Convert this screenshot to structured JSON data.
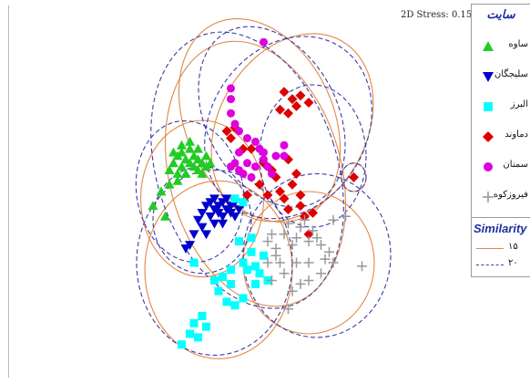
{
  "stress_label": "2D Stress: 0.15",
  "legend": {
    "title": "سایت",
    "items": [
      {
        "label": "ساوه",
        "marker": "triangle-up",
        "color": "#22cc22"
      },
      {
        "label": "سلیجگان",
        "marker": "triangle-down",
        "color": "#0000cc"
      },
      {
        "label": "البرز",
        "marker": "square",
        "color": "#00ffff"
      },
      {
        "label": "دماوند",
        "marker": "diamond",
        "color": "#dd0000"
      },
      {
        "label": "سمنان",
        "marker": "circle",
        "color": "#dd00dd"
      },
      {
        "label": "فیروزکوه",
        "marker": "plus",
        "color": "#999999"
      }
    ]
  },
  "similarity": {
    "title": "Similarity",
    "levels": [
      {
        "label": "۱۵",
        "style": "solid",
        "color": "#e08848"
      },
      {
        "label": "۲۰",
        "style": "dashed",
        "color": "#3a3aa8"
      }
    ]
  },
  "chart_data": {
    "type": "scatter",
    "axes_visible": false,
    "xlim": [
      0,
      100
    ],
    "ylim": [
      0,
      100
    ],
    "series": [
      {
        "name": "ساوه",
        "marker": "triangle-up",
        "color": "#22cc22",
        "points": [
          [
            28,
            56
          ],
          [
            29,
            58
          ],
          [
            30,
            55
          ],
          [
            30,
            60
          ],
          [
            31,
            57
          ],
          [
            31,
            61
          ],
          [
            32,
            59
          ],
          [
            32,
            55
          ],
          [
            33,
            58
          ],
          [
            33,
            62
          ],
          [
            34,
            57
          ],
          [
            34,
            60
          ],
          [
            35,
            56
          ],
          [
            35,
            59
          ],
          [
            35,
            62
          ],
          [
            36,
            58
          ],
          [
            36,
            55
          ],
          [
            37,
            60
          ],
          [
            37,
            57
          ],
          [
            33,
            64
          ],
          [
            31,
            63
          ],
          [
            29,
            61
          ],
          [
            30,
            53
          ],
          [
            38,
            58
          ],
          [
            26,
            50
          ],
          [
            24,
            46
          ],
          [
            27,
            43
          ],
          [
            28,
            52
          ]
        ]
      },
      {
        "name": "سلیجگان",
        "marker": "triangle-down",
        "color": "#0000cc",
        "points": [
          [
            36,
            44
          ],
          [
            37,
            46
          ],
          [
            38,
            43
          ],
          [
            38,
            47
          ],
          [
            39,
            45
          ],
          [
            39,
            48
          ],
          [
            40,
            44
          ],
          [
            40,
            46
          ],
          [
            41,
            43
          ],
          [
            41,
            47
          ],
          [
            42,
            45
          ],
          [
            42,
            48
          ],
          [
            43,
            44
          ],
          [
            43,
            46
          ],
          [
            44,
            47
          ],
          [
            44,
            43
          ],
          [
            45,
            45
          ],
          [
            36,
            40
          ],
          [
            35,
            42
          ],
          [
            34,
            38
          ],
          [
            33,
            35
          ],
          [
            37,
            38
          ],
          [
            39,
            41
          ],
          [
            41,
            41
          ],
          [
            32,
            34
          ]
        ]
      },
      {
        "name": "البرز",
        "marker": "square",
        "color": "#00ffff",
        "points": [
          [
            45,
            36
          ],
          [
            47,
            28
          ],
          [
            48,
            33
          ],
          [
            49,
            29
          ],
          [
            50,
            27
          ],
          [
            51,
            32
          ],
          [
            52,
            25
          ],
          [
            46,
            20
          ],
          [
            44,
            18
          ],
          [
            42,
            19
          ],
          [
            40,
            22
          ],
          [
            39,
            25
          ],
          [
            41,
            26
          ],
          [
            43,
            24
          ],
          [
            36,
            15
          ],
          [
            34,
            13
          ],
          [
            37,
            12
          ],
          [
            33,
            10
          ],
          [
            35,
            9
          ],
          [
            31,
            7
          ],
          [
            44,
            48
          ],
          [
            46,
            47
          ],
          [
            43,
            28
          ],
          [
            48,
            37
          ],
          [
            49,
            24
          ],
          [
            34,
            30
          ],
          [
            46,
            30
          ]
        ]
      },
      {
        "name": "دماوند",
        "marker": "diamond",
        "color": "#dd0000",
        "points": [
          [
            56,
            78
          ],
          [
            58,
            76
          ],
          [
            59,
            74
          ],
          [
            60,
            77
          ],
          [
            62,
            75
          ],
          [
            57,
            72
          ],
          [
            55,
            73
          ],
          [
            42,
            67
          ],
          [
            43,
            65
          ],
          [
            46,
            62
          ],
          [
            48,
            62
          ],
          [
            44,
            68
          ],
          [
            51,
            58
          ],
          [
            53,
            56
          ],
          [
            54,
            54
          ],
          [
            55,
            50
          ],
          [
            56,
            48
          ],
          [
            57,
            45
          ],
          [
            58,
            52
          ],
          [
            59,
            55
          ],
          [
            60,
            49
          ],
          [
            60,
            46
          ],
          [
            61,
            43
          ],
          [
            62,
            38
          ],
          [
            63,
            44
          ],
          [
            50,
            52
          ],
          [
            52,
            49
          ],
          [
            73,
            54
          ],
          [
            57,
            59
          ],
          [
            47,
            49
          ]
        ]
      },
      {
        "name": "سمنان",
        "marker": "circle",
        "color": "#dd00dd",
        "points": [
          [
            51,
            92
          ],
          [
            43,
            79
          ],
          [
            43,
            76
          ],
          [
            43,
            72
          ],
          [
            44,
            69
          ],
          [
            45,
            67
          ],
          [
            47,
            65
          ],
          [
            49,
            64
          ],
          [
            50,
            62
          ],
          [
            51,
            61
          ],
          [
            51,
            59
          ],
          [
            52,
            57
          ],
          [
            53,
            55
          ],
          [
            54,
            60
          ],
          [
            56,
            63
          ],
          [
            56,
            60
          ],
          [
            49,
            57
          ],
          [
            47,
            58
          ],
          [
            46,
            55
          ],
          [
            45,
            56
          ],
          [
            44,
            58
          ],
          [
            43,
            57
          ],
          [
            45,
            61
          ],
          [
            48,
            54
          ]
        ]
      },
      {
        "name": "فیروزکوه",
        "marker": "plus",
        "color": "#999999",
        "points": [
          [
            57,
            41
          ],
          [
            56,
            38
          ],
          [
            58,
            35
          ],
          [
            59,
            37
          ],
          [
            60,
            40
          ],
          [
            61,
            42
          ],
          [
            62,
            36
          ],
          [
            63,
            39
          ],
          [
            64,
            37
          ],
          [
            65,
            35
          ],
          [
            66,
            31
          ],
          [
            67,
            33
          ],
          [
            68,
            30
          ],
          [
            65,
            27
          ],
          [
            62,
            25
          ],
          [
            60,
            24
          ],
          [
            58,
            22
          ],
          [
            56,
            27
          ],
          [
            55,
            30
          ],
          [
            54,
            34
          ],
          [
            53,
            38
          ],
          [
            54,
            32
          ],
          [
            52,
            30
          ],
          [
            52,
            36
          ],
          [
            53,
            25
          ],
          [
            59,
            30
          ],
          [
            62,
            30
          ],
          [
            57,
            17
          ],
          [
            75,
            29
          ],
          [
            71,
            43
          ],
          [
            68,
            42
          ]
        ]
      }
    ],
    "clusters": [
      {
        "level": "۱۵",
        "style": "solid",
        "color": "#e08848",
        "ellipses": [
          [
            50,
            70,
            18,
            30,
            -25
          ],
          [
            58,
            68,
            18,
            28,
            30
          ],
          [
            36,
            48,
            15,
            22,
            0
          ],
          [
            40,
            28,
            18,
            25,
            0
          ],
          [
            62,
            30,
            16,
            20,
            0
          ],
          [
            73,
            54,
            3,
            4,
            0
          ],
          [
            49,
            55,
            21,
            38,
            -15
          ]
        ]
      },
      {
        "level": "۲۰",
        "style": "dashed",
        "color": "#3a3aa8",
        "ellipses": [
          [
            53,
            71,
            16,
            27,
            -28
          ],
          [
            57,
            68,
            19,
            27,
            33
          ],
          [
            33,
            50,
            13,
            20,
            -10
          ],
          [
            39,
            30,
            19,
            26,
            0
          ],
          [
            64,
            32,
            18,
            23,
            0
          ],
          [
            73,
            54,
            3,
            4,
            0
          ],
          [
            47,
            56,
            22,
            40,
            -18
          ],
          [
            36,
            42,
            12,
            15,
            0
          ],
          [
            63,
            60,
            13,
            20,
            0
          ]
        ]
      }
    ]
  }
}
